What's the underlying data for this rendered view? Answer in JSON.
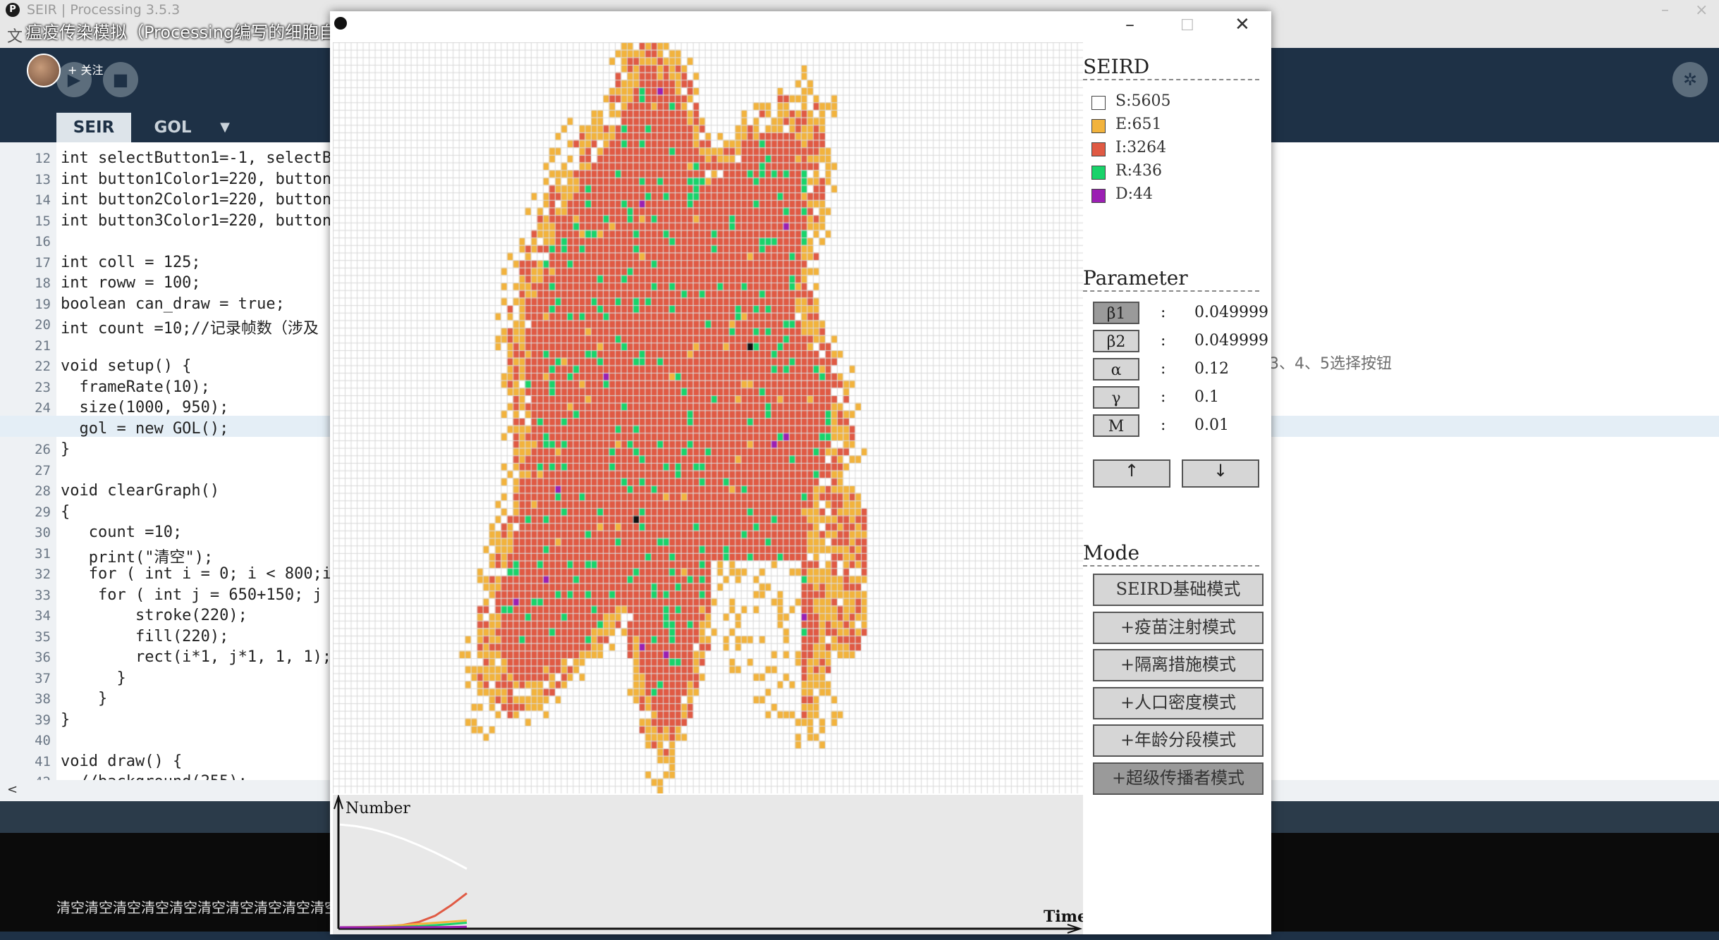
{
  "ide": {
    "window_title": "SEIR | Processing 3.5.3",
    "menu_text": "文",
    "tabs": [
      {
        "label": "SEIR",
        "active": true
      },
      {
        "label": "GOL",
        "active": false
      }
    ],
    "tab_more": "▼",
    "code_lines": [
      {
        "n": "12",
        "text": "int selectButton1=-1, selectBu"
      },
      {
        "n": "13",
        "text": "int button1Color1=220, button1"
      },
      {
        "n": "14",
        "text": "int button2Color1=220, button2"
      },
      {
        "n": "15",
        "text": "int button3Color1=220, button3"
      },
      {
        "n": "16",
        "text": ""
      },
      {
        "n": "17",
        "text": "int coll = 125;"
      },
      {
        "n": "18",
        "text": "int roww = 100;"
      },
      {
        "n": "19",
        "text": "boolean can_draw = true;"
      },
      {
        "n": "20",
        "text": "int count =10;//记录帧数（涉及"
      },
      {
        "n": "21",
        "text": ""
      },
      {
        "n": "22",
        "text": "void setup() {"
      },
      {
        "n": "23",
        "text": "  frameRate(10);"
      },
      {
        "n": "24",
        "text": "  size(1000, 950);"
      },
      {
        "n": "25",
        "text": "  gol = new GOL();"
      },
      {
        "n": "26",
        "text": "}"
      },
      {
        "n": "27",
        "text": ""
      },
      {
        "n": "28",
        "text": "void clearGraph()"
      },
      {
        "n": "29",
        "text": "{"
      },
      {
        "n": "30",
        "text": "   count =10;"
      },
      {
        "n": "31",
        "text": "   print(\"清空\");"
      },
      {
        "n": "32",
        "text": "   for ( int i = 0; i < 800;i"
      },
      {
        "n": "33",
        "text": "    for ( int j = 650+150; j"
      },
      {
        "n": "34",
        "text": "        stroke(220);"
      },
      {
        "n": "35",
        "text": "        fill(220);"
      },
      {
        "n": "36",
        "text": "        rect(i*1, j*1, 1, 1);"
      },
      {
        "n": "37",
        "text": "      }"
      },
      {
        "n": "38",
        "text": "    }"
      },
      {
        "n": "39",
        "text": "}"
      },
      {
        "n": "40",
        "text": ""
      },
      {
        "n": "41",
        "text": "void draw() {"
      },
      {
        "n": "42",
        "text": "  //background(255);"
      }
    ],
    "right_comment": "3、4、5选择按钮",
    "console_text": "清空清空清空清空清空清空清空清空清空清空清空清",
    "scroll_left": "<"
  },
  "overlay": {
    "video_title": "瘟疫传染模拟（Processing编写的细胞自动机）",
    "follow_label": "+ 关注"
  },
  "sketch": {
    "legend_title": "SEIRD",
    "legend": [
      {
        "label": "S:5605",
        "color": "#ffffff"
      },
      {
        "label": "E:651",
        "color": "#f2b33d"
      },
      {
        "label": "I:3264",
        "color": "#e05a44"
      },
      {
        "label": "R:436",
        "color": "#19d36a"
      },
      {
        "label": "D:44",
        "color": "#9b1fb3"
      }
    ],
    "param_title": "Parameter",
    "params": [
      {
        "name": "β1",
        "value": "0.049999",
        "selected": true
      },
      {
        "name": "β2",
        "value": "0.049999",
        "selected": false
      },
      {
        "name": "α",
        "value": "0.12",
        "selected": false
      },
      {
        "name": "γ",
        "value": "0.1",
        "selected": false
      },
      {
        "name": "M",
        "value": "0.01",
        "selected": false
      }
    ],
    "colon": ":",
    "up_label": "↑",
    "down_label": "↓",
    "mode_title": "Mode",
    "modes": [
      {
        "label": "SEIRD基础模式",
        "active": false
      },
      {
        "label": "+疫苗注射模式",
        "active": false
      },
      {
        "label": "+隔离措施模式",
        "active": false
      },
      {
        "label": "+人口密度模式",
        "active": false
      },
      {
        "label": "+年龄分段模式",
        "active": false
      },
      {
        "label": "+超级传播者模式",
        "active": true
      }
    ],
    "grid": {
      "cols": 125,
      "rows": 100
    },
    "colors": {
      "S": "#ffffff",
      "E": "#f2b33d",
      "I": "#e05a44",
      "R": "#19d36a",
      "D": "#9b1fb3",
      "grid_line": "#d9d9d9",
      "chart_bg": "#e8e8e8"
    }
  },
  "chart_data": {
    "type": "line",
    "title": "",
    "xlabel": "Time",
    "ylabel": "Number",
    "series": [
      {
        "name": "S",
        "color": "#ffffff",
        "values": [
          9860,
          9700,
          9420,
          9000,
          8480,
          7860,
          7170,
          6420,
          5605
        ]
      },
      {
        "name": "I",
        "color": "#e05a44",
        "values": [
          1,
          8,
          30,
          90,
          230,
          520,
          1100,
          2100,
          3264
        ]
      },
      {
        "name": "E",
        "color": "#f2b33d",
        "values": [
          0,
          20,
          60,
          120,
          210,
          320,
          430,
          540,
          651
        ]
      },
      {
        "name": "R",
        "color": "#19d36a",
        "values": [
          0,
          2,
          8,
          20,
          50,
          110,
          200,
          310,
          436
        ]
      },
      {
        "name": "D",
        "color": "#9b1fb3",
        "values": [
          0,
          0,
          1,
          2,
          5,
          10,
          18,
          30,
          44
        ]
      }
    ],
    "ylim": [
      0,
      10000
    ]
  }
}
